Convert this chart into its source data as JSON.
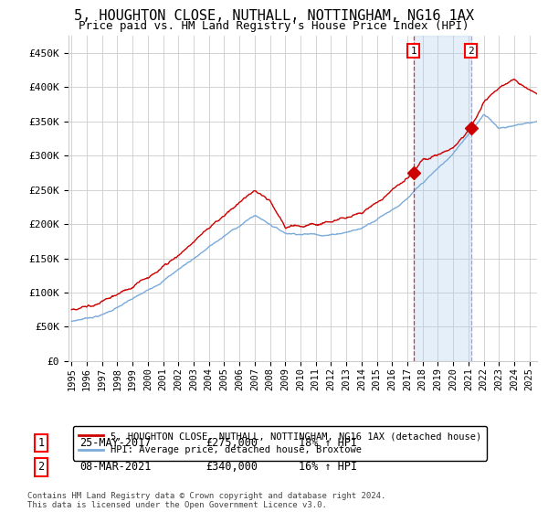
{
  "title": "5, HOUGHTON CLOSE, NUTHALL, NOTTINGHAM, NG16 1AX",
  "subtitle": "Price paid vs. HM Land Registry's House Price Index (HPI)",
  "ylabel_ticks": [
    "£0",
    "£50K",
    "£100K",
    "£150K",
    "£200K",
    "£250K",
    "£300K",
    "£350K",
    "£400K",
    "£450K"
  ],
  "ytick_vals": [
    0,
    50000,
    100000,
    150000,
    200000,
    250000,
    300000,
    350000,
    400000,
    450000
  ],
  "ylim": [
    0,
    475000
  ],
  "xlim_start": 1994.8,
  "xlim_end": 2025.5,
  "x_ticks": [
    1995,
    1996,
    1997,
    1998,
    1999,
    2000,
    2001,
    2002,
    2003,
    2004,
    2005,
    2006,
    2007,
    2008,
    2009,
    2010,
    2011,
    2012,
    2013,
    2014,
    2015,
    2016,
    2017,
    2018,
    2019,
    2020,
    2021,
    2022,
    2023,
    2024,
    2025
  ],
  "purchase1_x": 2017.4,
  "purchase1_y": 275000,
  "purchase1_label": "1",
  "purchase1_date": "25-MAY-2017",
  "purchase1_price": "£275,000",
  "purchase1_hpi": "18% ↑ HPI",
  "purchase2_x": 2021.17,
  "purchase2_y": 340000,
  "purchase2_label": "2",
  "purchase2_date": "08-MAR-2021",
  "purchase2_price": "£340,000",
  "purchase2_hpi": "16% ↑ HPI",
  "legend_line1": "5, HOUGHTON CLOSE, NUTHALL, NOTTINGHAM, NG16 1AX (detached house)",
  "legend_line2": "HPI: Average price, detached house, Broxtowe",
  "footer": "Contains HM Land Registry data © Crown copyright and database right 2024.\nThis data is licensed under the Open Government Licence v3.0.",
  "house_color": "#cc0000",
  "hpi_color": "#7aabda",
  "bg_color": "#ffffff",
  "plot_bg": "#ffffff",
  "grid_color": "#cccccc",
  "title_fontsize": 11,
  "subtitle_fontsize": 9
}
